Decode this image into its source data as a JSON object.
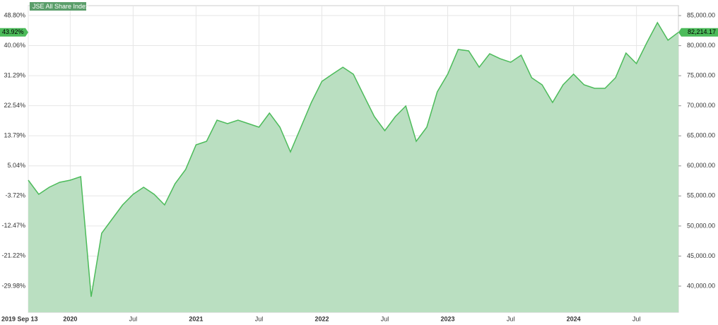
{
  "chart_data": {
    "type": "area",
    "legend": "JSE All Share Index",
    "annotations": {
      "left": "43.92%",
      "right": "82,214.17"
    },
    "categories": [
      "2019 Sep 13",
      null,
      null,
      null,
      "2020",
      null,
      null,
      null,
      null,
      null,
      "Jul",
      null,
      null,
      null,
      null,
      null,
      "2021",
      null,
      null,
      null,
      null,
      null,
      "Jul",
      null,
      null,
      null,
      null,
      null,
      "2022",
      null,
      null,
      null,
      null,
      null,
      "Jul",
      null,
      null,
      null,
      null,
      null,
      "2023",
      null,
      null,
      null,
      null,
      null,
      "Jul",
      null,
      null,
      null,
      null,
      null,
      "2024",
      null,
      null,
      null,
      null,
      null,
      "Jul",
      null,
      null,
      null,
      null
    ],
    "series": [
      {
        "name": "JSE All Share Index",
        "color": "#4cbb5a",
        "fill": "#badfc1",
        "axis": "y2",
        "values": [
          57620,
          55270,
          56450,
          57270,
          57620,
          58210,
          38240,
          48810,
          51160,
          53510,
          55270,
          56450,
          55270,
          53510,
          57040,
          59390,
          63500,
          64090,
          67610,
          67020,
          67610,
          67020,
          66440,
          68790,
          66440,
          62320,
          66440,
          70550,
          74070,
          75250,
          76420,
          75250,
          71720,
          68200,
          65850,
          68200,
          69960,
          64090,
          66440,
          72310,
          75250,
          79360,
          79130,
          76420,
          78650,
          77830,
          77240,
          78410,
          74660,
          73490,
          70550,
          73490,
          75250,
          73490,
          72900,
          72900,
          74660,
          78770,
          77010,
          80540,
          83830,
          80900,
          82214.17
        ]
      }
    ],
    "ylim": [
      -37.6,
      51.67
    ],
    "yticks": [
      {
        "value": 48.8,
        "label": "48.80%"
      },
      {
        "value": 40.06,
        "label": "40.06%"
      },
      {
        "value": 31.29,
        "label": "31.29%"
      },
      {
        "value": 22.54,
        "label": "22.54%"
      },
      {
        "value": 13.79,
        "label": "13.79%"
      },
      {
        "value": 5.04,
        "label": "5.04%"
      },
      {
        "value": -3.72,
        "label": "-3.72%"
      },
      {
        "value": -12.47,
        "label": "-12.47%"
      },
      {
        "value": -21.22,
        "label": "-21.22%"
      },
      {
        "value": -29.98,
        "label": "-29.98%"
      }
    ],
    "y2lim": [
      35650,
      86650
    ],
    "y2ticks": [
      {
        "value": 85000,
        "label": "85,000.00"
      },
      {
        "value": 80000,
        "label": "80,000.00"
      },
      {
        "value": 75000,
        "label": "75,000.00"
      },
      {
        "value": 70000,
        "label": "70,000.00"
      },
      {
        "value": 65000,
        "label": "65,000.00"
      },
      {
        "value": 60000,
        "label": "60,000.00"
      },
      {
        "value": 55000,
        "label": "55,000.00"
      },
      {
        "value": 50000,
        "label": "50,000.00"
      },
      {
        "value": 45000,
        "label": "45,000.00"
      },
      {
        "value": 40000,
        "label": "40,000.00"
      }
    ],
    "grid": true
  }
}
